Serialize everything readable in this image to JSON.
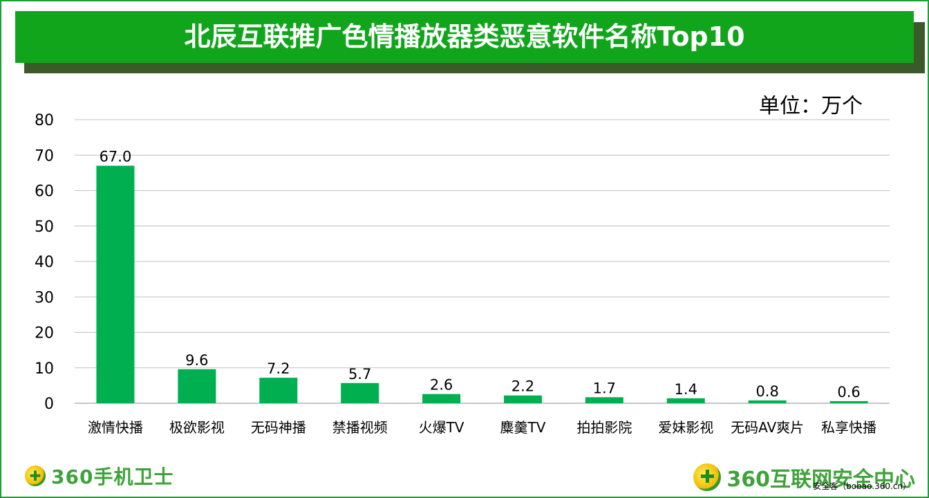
{
  "banner": {
    "title": "北辰互联推广色情播放器类恶意软件名称Top10"
  },
  "unit_label": "单位：万个",
  "chart_data": {
    "type": "bar",
    "title": "北辰互联推广色情播放器类恶意软件名称Top10",
    "xlabel": "",
    "ylabel": "",
    "ylim": [
      0,
      80
    ],
    "yticks": [
      0,
      10,
      20,
      30,
      40,
      50,
      60,
      70,
      80
    ],
    "ytick_labels": [
      "0",
      "10",
      "20",
      "30",
      "40",
      "50",
      "60",
      "70",
      "80"
    ],
    "grid": true,
    "bar_color": "#00b050",
    "categories": [
      "激情快播",
      "极欲影视",
      "无码神播",
      "禁播视频",
      "火爆TV",
      "麋羹TV",
      "拍拍影院",
      "爱妹影视",
      "无码AV爽片",
      "私享快播"
    ],
    "values": [
      67.0,
      9.6,
      7.2,
      5.7,
      2.6,
      2.2,
      1.7,
      1.4,
      0.8,
      0.6
    ],
    "value_labels": [
      "67.0",
      "9.6",
      "7.2",
      "5.7",
      "2.6",
      "2.2",
      "1.7",
      "1.4",
      "0.8",
      "0.6"
    ]
  },
  "footer": {
    "left_logo_mark": "✚",
    "left_logo_text": "360手机卫士",
    "right_logo_mark": "✚",
    "right_logo_text": "360互联网安全中心",
    "source_text": "安全客（bobao.360.cn）"
  },
  "colors": {
    "banner": "#11a51b",
    "frame": "#19a035",
    "bar": "#00b050"
  }
}
